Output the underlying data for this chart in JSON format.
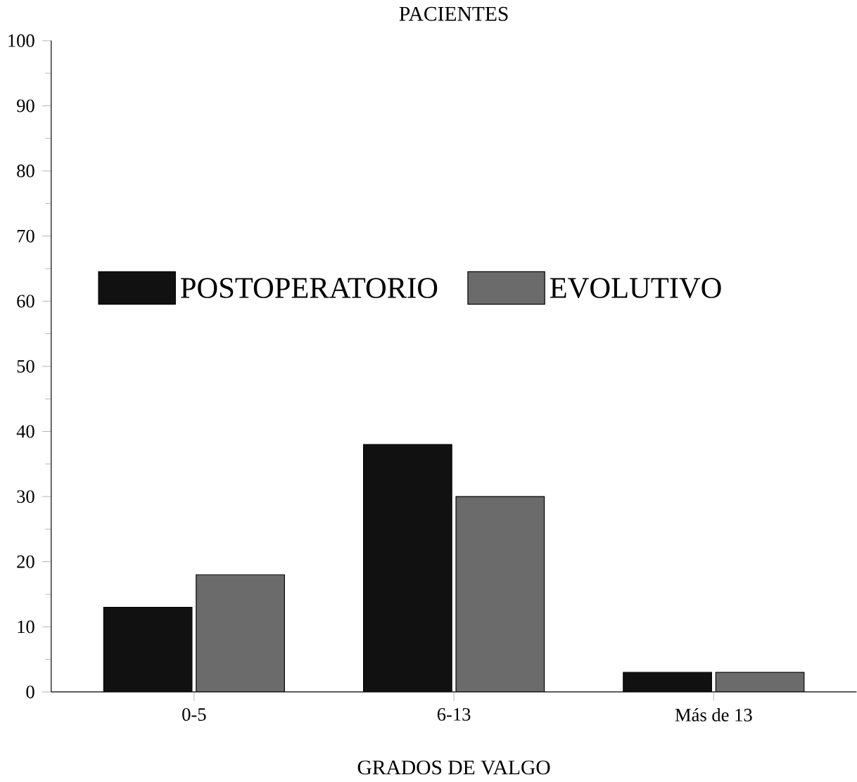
{
  "chart_data": {
    "type": "bar",
    "title": "PACIENTES",
    "xlabel": "GRADOS DE VALGO",
    "categories": [
      "0-5",
      "6-13",
      "Más de 13"
    ],
    "series": [
      {
        "name": "POSTOPERATORIO",
        "color": "#111111",
        "values": [
          13,
          38,
          3
        ]
      },
      {
        "name": "EVOLUTIVO",
        "color": "#6b6b6b",
        "values": [
          18,
          30,
          3
        ]
      }
    ],
    "ylim": [
      0,
      100
    ],
    "yticks": [
      0,
      10,
      20,
      30,
      40,
      50,
      60,
      70,
      80,
      90,
      100
    ],
    "legend": "left"
  }
}
